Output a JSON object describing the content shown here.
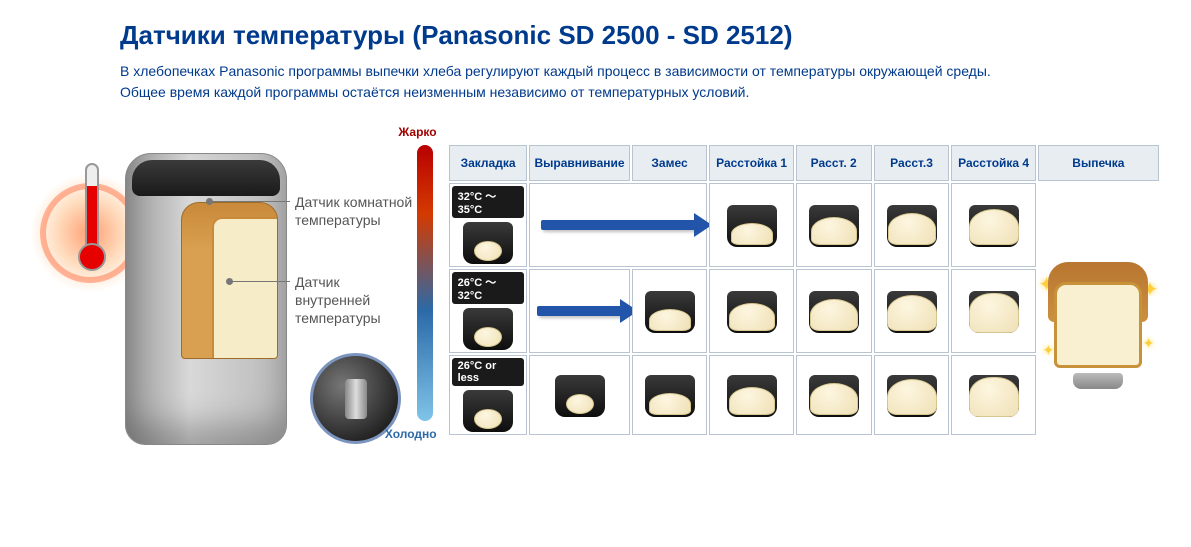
{
  "heading": "Датчики температуры  (Panasonic SD 2500 - SD 2512)",
  "description_line1": "В хлебопечках Panasonic  программы выпечки хлеба регулируют каждый процесс в зависимости от температуры окружающей среды.",
  "description_line2": "Общее время каждой программы остаётся неизменным независимо от температурных условий.",
  "sensor_labels": {
    "room": "Датчик комнатной температуры",
    "inner": "Датчик внутренней температуры"
  },
  "tempbar": {
    "hot": "Жарко",
    "cold": "Холодно",
    "gradient_top": "#b80000",
    "gradient_bottom": "#7fc4e8"
  },
  "columns": {
    "zakl": "Закладка",
    "vyrav": "Выравнивание",
    "zames": "Замес",
    "rasst1": "Расстойка 1",
    "rasst2": "Расст. 2",
    "rasst3": "Расст.3",
    "rasst4": "Расстойка 4",
    "vypechka": "Выпечка"
  },
  "rows": [
    {
      "temp_label": "32°C ～ 35°C",
      "dough_sizes": [
        "s1",
        "s2",
        "s3",
        "s4",
        "s5"
      ]
    },
    {
      "temp_label": "26°C ～ 32°C",
      "dough_sizes": [
        "s1",
        "s2",
        "s3",
        "s4",
        "s5",
        "s6"
      ]
    },
    {
      "temp_label": "26°C or less",
      "dough_sizes": [
        "s1",
        "s2",
        "s3",
        "s4",
        "s5",
        "s6"
      ]
    }
  ],
  "colors": {
    "title": "#003a8c",
    "header_bg": "#e8edf2",
    "border": "#b8c4d2",
    "arrow": "#2255aa",
    "chip_bg": "#1a1a1a"
  }
}
